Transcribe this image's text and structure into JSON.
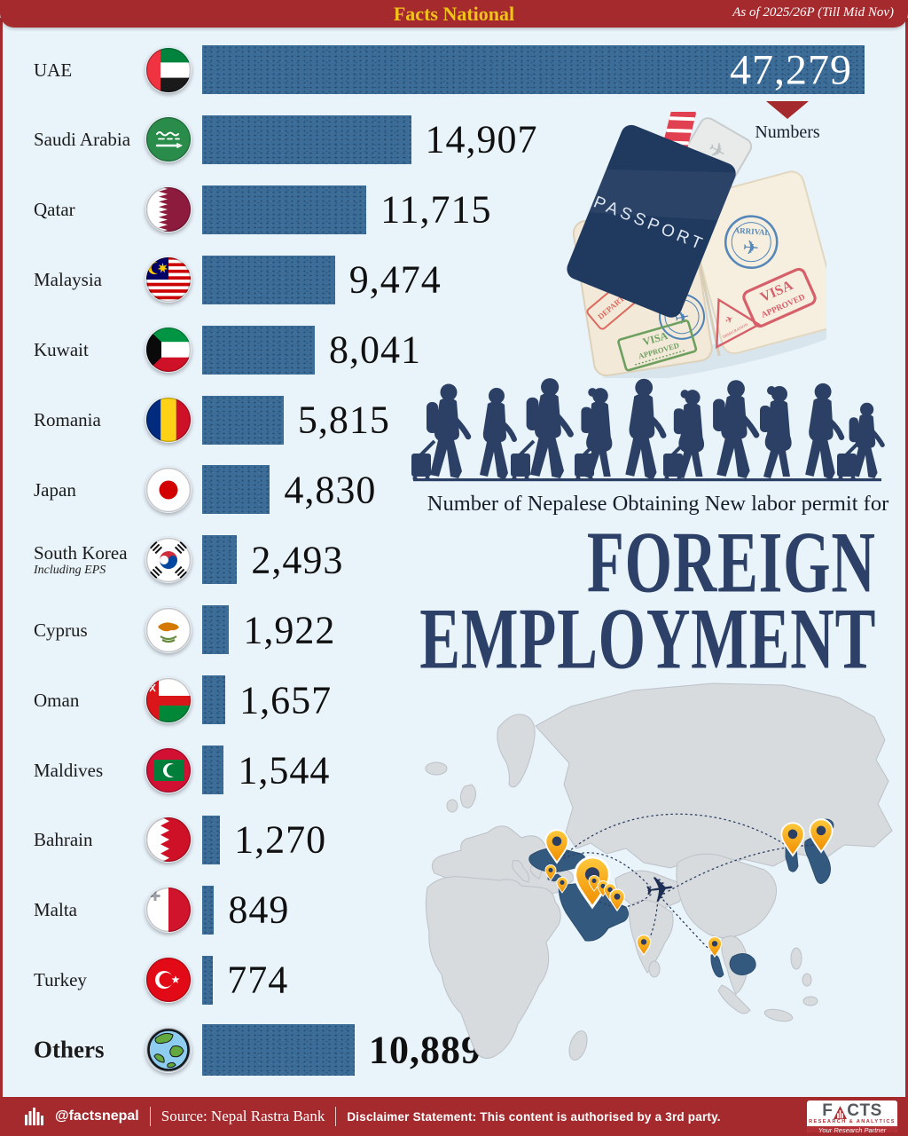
{
  "header": {
    "brand": "Facts National",
    "as_of": "As of 2025/26P (Till Mid Nov)"
  },
  "title": {
    "kicker": "Number of Nepalese Obtaining New labor permit for",
    "line1": "FOREIGN",
    "line2": "EMPLOYMENT"
  },
  "chart_data": {
    "type": "bar",
    "orientation": "horizontal",
    "value_axis_label": "Numbers",
    "xlim": [
      0,
      47279
    ],
    "bar_color": "#3c6d98",
    "categories": [
      "UAE",
      "Saudi Arabia",
      "Qatar",
      "Malaysia",
      "Kuwait",
      "Romania",
      "Japan",
      "South Korea",
      "Cyprus",
      "Oman",
      "Maldives",
      "Bahrain",
      "Malta",
      "Turkey",
      "Others"
    ],
    "values": [
      47279,
      14907,
      11715,
      9474,
      8041,
      5815,
      4830,
      2493,
      1922,
      1657,
      1544,
      1270,
      849,
      774,
      10889
    ],
    "rows": [
      {
        "label": "UAE",
        "flag": "uae-flag-icon",
        "value": 47279,
        "display": "47,279",
        "value_inside": true
      },
      {
        "label": "Saudi Arabia",
        "flag": "saudi-arabia-flag-icon",
        "value": 14907,
        "display": "14,907"
      },
      {
        "label": "Qatar",
        "flag": "qatar-flag-icon",
        "value": 11715,
        "display": "11,715"
      },
      {
        "label": "Malaysia",
        "flag": "malaysia-flag-icon",
        "value": 9474,
        "display": "9,474"
      },
      {
        "label": "Kuwait",
        "flag": "kuwait-flag-icon",
        "value": 8041,
        "display": "8,041"
      },
      {
        "label": "Romania",
        "flag": "romania-flag-icon",
        "value": 5815,
        "display": "5,815"
      },
      {
        "label": "Japan",
        "flag": "japan-flag-icon",
        "value": 4830,
        "display": "4,830"
      },
      {
        "label": "South Korea",
        "note": "Including EPS",
        "flag": "south-korea-flag-icon",
        "value": 2493,
        "display": "2,493"
      },
      {
        "label": "Cyprus",
        "flag": "cyprus-flag-icon",
        "value": 1922,
        "display": "1,922"
      },
      {
        "label": "Oman",
        "flag": "oman-flag-icon",
        "value": 1657,
        "display": "1,657"
      },
      {
        "label": "Maldives",
        "flag": "maldives-flag-icon",
        "value": 1544,
        "display": "1,544"
      },
      {
        "label": "Bahrain",
        "flag": "bahrain-flag-icon",
        "value": 1270,
        "display": "1,270"
      },
      {
        "label": "Malta",
        "flag": "malta-flag-icon",
        "value": 849,
        "display": "849"
      },
      {
        "label": "Turkey",
        "flag": "turkey-flag-icon",
        "value": 774,
        "display": "774"
      },
      {
        "label": "Others",
        "flag": "globe-icon",
        "value": 10889,
        "display": "10,889",
        "emphasis": true
      }
    ]
  },
  "passport": {
    "cover": "PASSPORT",
    "arrival": "ARRIVAL",
    "visa_red": "VISA",
    "approved_red": "APPROVED",
    "visa_green": "VISA",
    "approved_green": "APPROVED",
    "departure": "DEPARTURE",
    "immigration": "IMMIGRATION"
  },
  "footer": {
    "handle": "@factsnepal",
    "source": "Source: Nepal Rastra Bank",
    "disclaimer": "Disclaimer Statement: This content is authorised by a 3rd party.",
    "logo": {
      "f": "F",
      "cts": "CTS",
      "tagline": "RESEARCH & ANALYTICS",
      "slogan": "Your Research Partner"
    }
  },
  "colors": {
    "accent_red": "#a42a2e",
    "gold": "#f1c21b",
    "bar_blue": "#3c6d98",
    "navy": "#2d4168",
    "pin_orange": "#f59e0b",
    "background": "#e9f3fa"
  }
}
